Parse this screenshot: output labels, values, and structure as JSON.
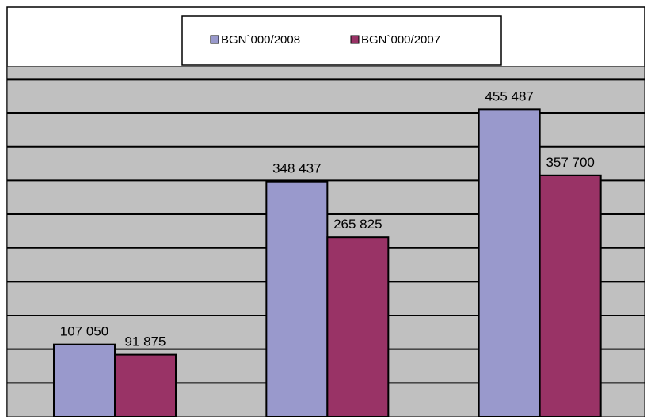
{
  "chart_data": {
    "type": "bar",
    "categories": [
      "",
      "",
      ""
    ],
    "series": [
      {
        "name": "BGN`000/2008",
        "values": [
          107050,
          348437,
          455487
        ],
        "color": "#9999CC"
      },
      {
        "name": "BGN`000/2007",
        "values": [
          91875,
          265825,
          357700
        ],
        "color": "#993366"
      }
    ],
    "data_labels": {
      "BGN`000/2008": [
        "107 050",
        "348 437",
        "455 487"
      ],
      "BGN`000/2007": [
        "91 875",
        "265 825",
        "357 700"
      ]
    },
    "ylim": [
      0,
      500000
    ],
    "grid": true,
    "legend_placement": "top",
    "plot_background": "#C0C0C0",
    "gridline_color": "#000000"
  }
}
